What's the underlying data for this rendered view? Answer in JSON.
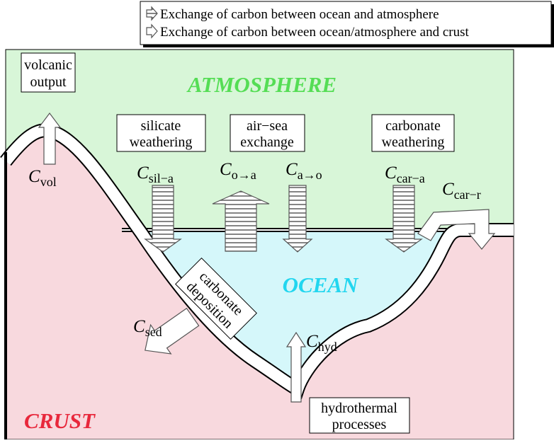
{
  "legend": [
    {
      "label": "Exchange of carbon between ocean and atmosphere"
    },
    {
      "label": "Exchange of carbon between ocean/atmosphere and crust"
    }
  ],
  "regions": {
    "atmosphere": "ATMOSPHERE",
    "ocean": "OCEAN",
    "crust": "CRUST"
  },
  "processes": [
    {
      "lines": [
        "volcanic",
        "output"
      ]
    },
    {
      "lines": [
        "silicate",
        "weathering"
      ]
    },
    {
      "lines": [
        "air−sea",
        "exchange"
      ]
    },
    {
      "lines": [
        "carbonate",
        "weathering"
      ]
    },
    {
      "lines": [
        "carbonate",
        "deposition"
      ]
    },
    {
      "lines": [
        "hydrothermal",
        "processes"
      ]
    }
  ],
  "fluxes": [
    {
      "symbol": "C",
      "subscript": "vol"
    },
    {
      "symbol": "C",
      "subscript": "sil−a"
    },
    {
      "symbol": "C",
      "subscript": "o→a"
    },
    {
      "symbol": "C",
      "subscript": "a→o"
    },
    {
      "symbol": "C",
      "subscript": "car−a"
    },
    {
      "symbol": "C",
      "subscript": "car−r"
    },
    {
      "symbol": "C",
      "subscript": "sed"
    },
    {
      "symbol": "C",
      "subscript": "hyd"
    }
  ]
}
